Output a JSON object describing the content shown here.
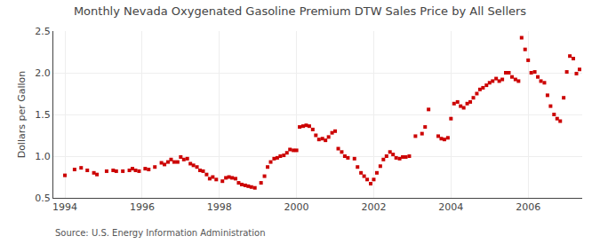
{
  "chart_data": {
    "type": "scatter",
    "title": "Monthly Nevada Oxygenated Gasoline Premium DTW Sales Price by All Sellers",
    "y_label": "Dollars per Gallon",
    "source": "Source: U.S. Energy Information Administration",
    "color": "#cc0000",
    "marker": "square",
    "grid": true,
    "xlim": [
      1993.7,
      2007.4
    ],
    "xticks": [
      1994,
      1996,
      1998,
      2000,
      2002,
      2004,
      2006
    ],
    "ylim": [
      0.5,
      2.5
    ],
    "yticks": [
      0.5,
      {
        "value": 1.0,
        "label": "1.0"
      },
      1.5,
      {
        "value": 2.0,
        "label": "2.0"
      },
      2.5
    ],
    "x": [
      1994.0,
      1994.25,
      1994.42,
      1994.58,
      1994.75,
      1994.83,
      1995.08,
      1995.25,
      1995.33,
      1995.5,
      1995.67,
      1995.75,
      1995.83,
      1995.92,
      1996.08,
      1996.17,
      1996.33,
      1996.5,
      1996.58,
      1996.67,
      1996.75,
      1996.83,
      1996.92,
      1997.0,
      1997.08,
      1997.17,
      1997.25,
      1997.33,
      1997.42,
      1997.5,
      1997.58,
      1997.67,
      1997.75,
      1997.83,
      1997.92,
      1998.08,
      1998.17,
      1998.25,
      1998.33,
      1998.42,
      1998.5,
      1998.58,
      1998.67,
      1998.75,
      1998.83,
      1998.92,
      1999.08,
      1999.17,
      1999.25,
      1999.33,
      1999.42,
      1999.5,
      1999.58,
      1999.67,
      1999.75,
      1999.83,
      1999.92,
      2000.0,
      2000.08,
      2000.17,
      2000.25,
      2000.33,
      2000.42,
      2000.5,
      2000.58,
      2000.67,
      2000.75,
      2000.83,
      2000.92,
      2001.0,
      2001.08,
      2001.17,
      2001.25,
      2001.33,
      2001.5,
      2001.58,
      2001.67,
      2001.75,
      2001.83,
      2001.92,
      2002.0,
      2002.08,
      2002.17,
      2002.25,
      2002.33,
      2002.42,
      2002.5,
      2002.58,
      2002.67,
      2002.75,
      2002.83,
      2002.92,
      2003.08,
      2003.25,
      2003.33,
      2003.42,
      2003.67,
      2003.75,
      2003.83,
      2003.92,
      2004.0,
      2004.08,
      2004.17,
      2004.25,
      2004.33,
      2004.42,
      2004.5,
      2004.58,
      2004.67,
      2004.75,
      2004.83,
      2004.92,
      2005.0,
      2005.08,
      2005.17,
      2005.25,
      2005.33,
      2005.42,
      2005.5,
      2005.58,
      2005.67,
      2005.75,
      2005.83,
      2005.92,
      2006.0,
      2006.08,
      2006.17,
      2006.25,
      2006.33,
      2006.42,
      2006.5,
      2006.58,
      2006.67,
      2006.75,
      2006.83,
      2006.92,
      2007.0,
      2007.08,
      2007.17,
      2007.25,
      2007.33
    ],
    "values": [
      0.77,
      0.84,
      0.86,
      0.83,
      0.8,
      0.78,
      0.82,
      0.83,
      0.82,
      0.82,
      0.83,
      0.85,
      0.83,
      0.82,
      0.85,
      0.84,
      0.87,
      0.92,
      0.9,
      0.93,
      0.96,
      0.93,
      0.93,
      0.99,
      0.96,
      0.97,
      0.91,
      0.89,
      0.87,
      0.83,
      0.82,
      0.78,
      0.73,
      0.75,
      0.72,
      0.7,
      0.74,
      0.75,
      0.74,
      0.73,
      0.68,
      0.66,
      0.65,
      0.64,
      0.63,
      0.62,
      0.68,
      0.76,
      0.87,
      0.93,
      0.97,
      0.98,
      1.0,
      1.01,
      1.04,
      1.08,
      1.07,
      1.07,
      1.35,
      1.36,
      1.37,
      1.36,
      1.32,
      1.25,
      1.2,
      1.21,
      1.19,
      1.23,
      1.28,
      1.3,
      1.09,
      1.05,
      1.0,
      0.98,
      0.97,
      0.87,
      0.8,
      0.76,
      0.72,
      0.67,
      0.72,
      0.8,
      0.88,
      0.96,
      1.0,
      1.05,
      1.02,
      0.98,
      0.97,
      0.99,
      0.99,
      1.0,
      1.24,
      1.27,
      1.35,
      1.56,
      1.24,
      1.21,
      1.2,
      1.22,
      1.45,
      1.63,
      1.65,
      1.6,
      1.58,
      1.63,
      1.65,
      1.7,
      1.75,
      1.8,
      1.82,
      1.85,
      1.88,
      1.9,
      1.93,
      1.9,
      1.92,
      2.0,
      2.0,
      1.95,
      1.92,
      1.9,
      2.42,
      2.28,
      2.15,
      2.0,
      2.01,
      1.95,
      1.9,
      1.88,
      1.73,
      1.6,
      1.5,
      1.45,
      1.42,
      1.7,
      2.01,
      2.2,
      2.17,
      1.99,
      2.04
    ]
  }
}
